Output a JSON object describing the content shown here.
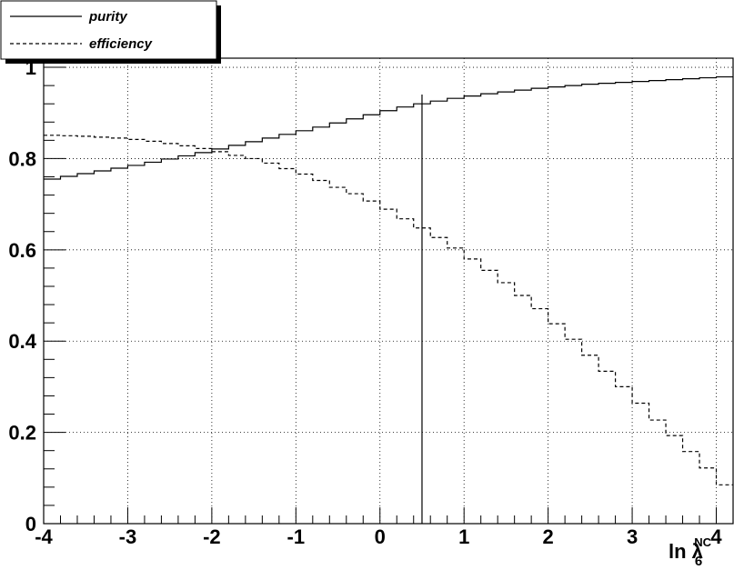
{
  "chart_data": {
    "type": "line",
    "step": true,
    "xlim": [
      -4,
      4.2
    ],
    "ylim": [
      0,
      1.02
    ],
    "grid": true,
    "legend_position": "top-left",
    "x_tick_labels": [
      "-4",
      "-3",
      "-2",
      "-1",
      "0",
      "1",
      "2",
      "3",
      "4"
    ],
    "y_tick_labels": [
      "0",
      "0.2",
      "0.4",
      "0.6",
      "0.8",
      "1"
    ],
    "xlabel": {
      "base": "ln λ",
      "subscript": "6",
      "superscript": "NC"
    },
    "cut_line_x": 0.5,
    "bin_edges": [
      -4.0,
      -3.8,
      -3.6,
      -3.4,
      -3.2,
      -3.0,
      -2.8,
      -2.6,
      -2.4,
      -2.2,
      -2.0,
      -1.8,
      -1.6,
      -1.4,
      -1.2,
      -1.0,
      -0.8,
      -0.6,
      -0.4,
      -0.2,
      0.0,
      0.2,
      0.4,
      0.6,
      0.8,
      1.0,
      1.2,
      1.4,
      1.6,
      1.8,
      2.0,
      2.2,
      2.4,
      2.6,
      2.8,
      3.0,
      3.2,
      3.4,
      3.6,
      3.8,
      4.0,
      4.2
    ],
    "series": [
      {
        "name": "purity",
        "style": "solid",
        "values": [
          0.755,
          0.761,
          0.767,
          0.773,
          0.779,
          0.785,
          0.792,
          0.799,
          0.806,
          0.813,
          0.821,
          0.829,
          0.837,
          0.845,
          0.853,
          0.861,
          0.869,
          0.878,
          0.887,
          0.896,
          0.905,
          0.913,
          0.92,
          0.926,
          0.932,
          0.937,
          0.942,
          0.946,
          0.95,
          0.954,
          0.957,
          0.96,
          0.963,
          0.965,
          0.967,
          0.969,
          0.971,
          0.973,
          0.975,
          0.977,
          0.979
        ]
      },
      {
        "name": "efficiency",
        "style": "dashed",
        "values": [
          0.851,
          0.85,
          0.849,
          0.847,
          0.845,
          0.842,
          0.838,
          0.833,
          0.828,
          0.822,
          0.815,
          0.807,
          0.8,
          0.79,
          0.778,
          0.766,
          0.752,
          0.737,
          0.723,
          0.707,
          0.689,
          0.668,
          0.648,
          0.627,
          0.604,
          0.58,
          0.555,
          0.528,
          0.5,
          0.471,
          0.438,
          0.404,
          0.369,
          0.334,
          0.3,
          0.264,
          0.227,
          0.193,
          0.158,
          0.122,
          0.085
        ]
      }
    ]
  }
}
